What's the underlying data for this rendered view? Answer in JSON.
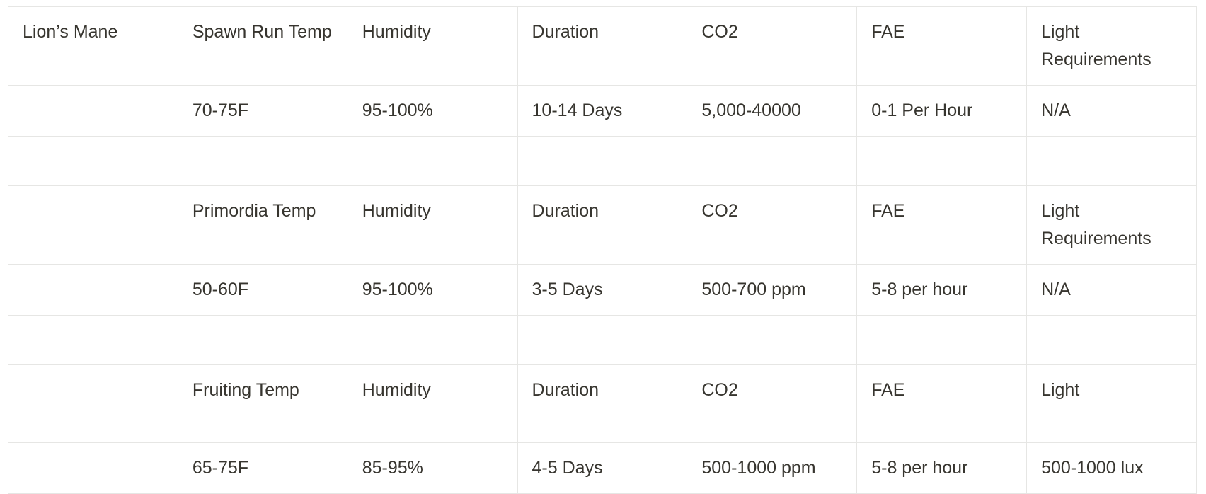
{
  "table": {
    "rows": [
      [
        "Lion’s Mane",
        "Spawn Run Temp",
        "Humidity",
        "Duration",
        "CO2",
        "FAE",
        "Light Requirements"
      ],
      [
        null,
        "70-75F",
        "95-100%",
        "10-14 Days",
        "5,000-40000",
        "0-1 Per Hour",
        "N/A"
      ],
      [
        null,
        null,
        null,
        null,
        null,
        null,
        null
      ],
      [
        null,
        "Primordia Temp",
        "Humidity",
        "Duration",
        "CO2",
        "FAE",
        "Light Requirements"
      ],
      [
        null,
        "50-60F",
        "95-100%",
        "3-5 Days",
        "500-700 ppm",
        "5-8 per hour",
        "N/A"
      ],
      [
        null,
        null,
        null,
        null,
        null,
        null,
        null
      ],
      [
        null,
        "Fruiting Temp",
        "Humidity",
        "Duration",
        "CO2",
        "FAE",
        "Light"
      ],
      [
        null,
        "65-75F",
        "85-95%",
        "4-5 Days",
        "500-1000 ppm",
        "5-8 per hour",
        "500-1000 lux"
      ]
    ]
  }
}
